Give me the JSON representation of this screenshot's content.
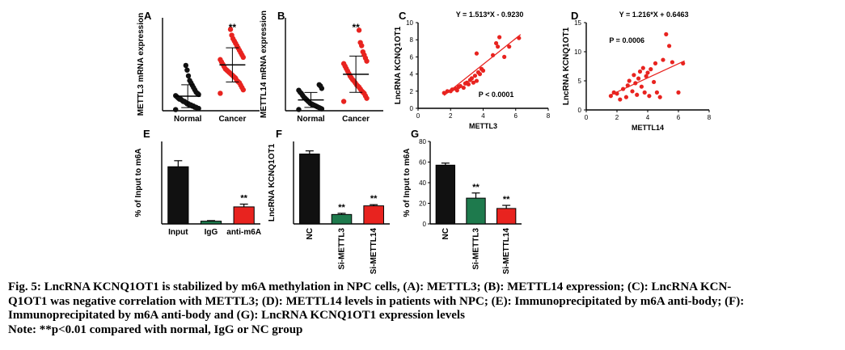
{
  "figure": {
    "caption": {
      "line1": "Fig. 5: LncRNA KCNQ1OT1 is stabilized by m6A methylation in NPC cells, (A): METTL3; (B): METTL14 expression; (C): LncRNA KCN-",
      "line2": "Q1OT1 was negative correlation with METTL3; (D): METTL14 levels in patients with NPC; (E): Immunoprecipitated by m6A anti-body; (F):",
      "line3": "Immunoprecipitated by m6A anti-body and (G): LncRNA KCNQ1OT1 expression levels",
      "note": "Note: **p<0.01 compared with normal, IgG or NC group"
    },
    "colors": {
      "black": "#111111",
      "red": "#e8231f",
      "green": "#1e7a4d",
      "axis": "#000000"
    }
  },
  "chart_data": [
    {
      "panel": "A",
      "type": "scatter",
      "ylabel": "METTL3 mRNA expression",
      "categories": [
        "Normal",
        "Cancer"
      ],
      "ylim": [
        0,
        8
      ],
      "yticks": [],
      "groups": [
        {
          "category": "Normal",
          "color": "#111111",
          "values": [
            0.1,
            0.2,
            0.2,
            0.3,
            0.3,
            0.4,
            0.4,
            0.5,
            0.5,
            0.6,
            0.6,
            0.7,
            0.8,
            0.8,
            0.9,
            1.0,
            1.0,
            1.1,
            1.2,
            1.3,
            1.4,
            1.5,
            1.6,
            1.8,
            2.0,
            2.2,
            2.4,
            2.6,
            3.0,
            3.5,
            3.9
          ]
        },
        {
          "category": "Cancer",
          "color": "#e8231f",
          "values": [
            1.5,
            1.8,
            2.0,
            2.2,
            2.4,
            2.5,
            2.6,
            2.8,
            2.9,
            3.0,
            3.1,
            3.2,
            3.3,
            3.4,
            3.5,
            3.6,
            3.8,
            4.0,
            4.2,
            4.4,
            4.6,
            4.8,
            5.0,
            5.2,
            5.4,
            5.6,
            5.8,
            6.0,
            6.2,
            6.5,
            7.0
          ]
        }
      ],
      "annotations": [
        {
          "category": "Cancer",
          "text": "**"
        }
      ]
    },
    {
      "panel": "B",
      "type": "scatter",
      "ylabel": "METTL14 mRNA expression",
      "categories": [
        "Normal",
        "Cancer"
      ],
      "ylim": [
        0,
        15
      ],
      "yticks": [],
      "groups": [
        {
          "category": "Normal",
          "color": "#111111",
          "values": [
            0.2,
            0.3,
            0.4,
            0.5,
            0.6,
            0.7,
            0.8,
            0.9,
            1.0,
            1.1,
            1.2,
            1.4,
            1.6,
            1.8,
            2.0,
            2.2,
            2.5,
            2.8,
            3.0,
            3.3,
            3.6,
            4.0,
            4.2
          ]
        },
        {
          "category": "Cancer",
          "color": "#e8231f",
          "values": [
            1.5,
            2.0,
            2.4,
            2.8,
            3.0,
            3.2,
            3.5,
            3.8,
            4.0,
            4.2,
            4.5,
            4.8,
            5.0,
            5.3,
            5.6,
            6.0,
            6.4,
            6.8,
            7.2,
            7.6,
            8.0,
            8.5,
            9.0,
            9.5,
            10.5,
            11.0,
            13.0
          ]
        }
      ],
      "annotations": [
        {
          "category": "Cancer",
          "text": "**"
        }
      ]
    },
    {
      "panel": "C",
      "type": "scatter",
      "title": "Y = 1.513*X - 0.9230",
      "xlabel": "METTL3",
      "ylabel": "LncRNA KCNQ1OT1",
      "xlim": [
        0,
        8
      ],
      "ylim": [
        0,
        10
      ],
      "xticks": [
        0,
        2,
        4,
        6,
        8
      ],
      "yticks": [
        0,
        2,
        4,
        6,
        8,
        10
      ],
      "fit": {
        "slope": 1.513,
        "intercept": -0.923,
        "x": [
          1.6,
          6.3
        ]
      },
      "stat": "P < 0.0001",
      "points": [
        [
          1.6,
          1.8
        ],
        [
          1.8,
          2.0
        ],
        [
          2.0,
          2.0
        ],
        [
          2.1,
          2.2
        ],
        [
          2.3,
          2.3
        ],
        [
          2.4,
          2.1
        ],
        [
          2.5,
          2.5
        ],
        [
          2.6,
          2.6
        ],
        [
          2.8,
          2.4
        ],
        [
          2.9,
          2.9
        ],
        [
          3.0,
          3.0
        ],
        [
          3.1,
          2.8
        ],
        [
          3.2,
          3.3
        ],
        [
          3.3,
          3.5
        ],
        [
          3.4,
          3.0
        ],
        [
          3.5,
          3.8
        ],
        [
          3.6,
          3.2
        ],
        [
          3.7,
          4.2
        ],
        [
          3.8,
          4.0
        ],
        [
          3.9,
          4.6
        ],
        [
          4.0,
          4.4
        ],
        [
          3.6,
          6.4
        ],
        [
          4.6,
          6.2
        ],
        [
          4.8,
          7.6
        ],
        [
          4.9,
          7.2
        ],
        [
          5.0,
          8.3
        ],
        [
          5.3,
          6.0
        ],
        [
          5.6,
          7.2
        ],
        [
          6.2,
          8.2
        ]
      ]
    },
    {
      "panel": "D",
      "type": "scatter",
      "title": "Y = 1.216*X + 0.6463",
      "xlabel": "METTL14",
      "ylabel": "LncRNA KCNQ1OT1",
      "xlim": [
        0,
        8
      ],
      "ylim": [
        0,
        15
      ],
      "xticks": [
        0,
        2,
        4,
        6,
        8
      ],
      "yticks": [
        0,
        5,
        10,
        15
      ],
      "fit": {
        "slope": 1.216,
        "intercept": 0.6463,
        "x": [
          1.6,
          6.4
        ]
      },
      "stat": "P = 0.0006",
      "points": [
        [
          1.6,
          2.4
        ],
        [
          1.8,
          3.0
        ],
        [
          2.0,
          2.8
        ],
        [
          2.2,
          1.8
        ],
        [
          2.4,
          3.6
        ],
        [
          2.6,
          2.2
        ],
        [
          2.7,
          4.2
        ],
        [
          2.8,
          5.0
        ],
        [
          3.0,
          3.2
        ],
        [
          3.1,
          6.0
        ],
        [
          3.2,
          4.6
        ],
        [
          3.3,
          2.6
        ],
        [
          3.4,
          5.4
        ],
        [
          3.5,
          6.6
        ],
        [
          3.6,
          4.0
        ],
        [
          3.7,
          7.2
        ],
        [
          3.8,
          3.0
        ],
        [
          3.9,
          5.8
        ],
        [
          4.0,
          6.4
        ],
        [
          4.1,
          2.4
        ],
        [
          4.2,
          7.0
        ],
        [
          4.4,
          4.8
        ],
        [
          4.5,
          8.0
        ],
        [
          4.6,
          3.0
        ],
        [
          4.8,
          2.2
        ],
        [
          5.0,
          8.6
        ],
        [
          5.2,
          13.0
        ],
        [
          5.4,
          11.0
        ],
        [
          5.6,
          8.2
        ],
        [
          6.0,
          3.0
        ],
        [
          6.3,
          8.0
        ]
      ]
    },
    {
      "panel": "E",
      "type": "bar",
      "ylabel": "% of Input to m6A",
      "categories": [
        "Input",
        "IgG",
        "anti-m6A"
      ],
      "values": [
        104,
        5,
        31
      ],
      "errors": [
        11,
        1,
        5
      ],
      "colors": [
        "#111111",
        "#1e7a4d",
        "#e8231f"
      ],
      "ylim": [
        0,
        150
      ],
      "annotations": [
        "",
        "",
        "**"
      ]
    },
    {
      "panel": "F",
      "type": "bar",
      "ylabel": "LncRNA KCNQ1OT1",
      "categories": [
        "NC",
        "Si-METTL3",
        "Si-METTL14"
      ],
      "values": [
        1.78,
        0.24,
        0.46
      ],
      "errors": [
        0.08,
        0.03,
        0.03
      ],
      "colors": [
        "#111111",
        "#1e7a4d",
        "#e8231f"
      ],
      "ylim": [
        0,
        2.1
      ],
      "annotations": [
        "",
        "**",
        "**"
      ]
    },
    {
      "panel": "G",
      "type": "bar",
      "ylabel": "% of Input to m6A",
      "categories": [
        "NC",
        "Si-METTL3",
        "Si-METTL14"
      ],
      "values": [
        57,
        25,
        15
      ],
      "errors": [
        2,
        5,
        3
      ],
      "colors": [
        "#111111",
        "#1e7a4d",
        "#e8231f"
      ],
      "ylim": [
        0,
        80
      ],
      "yticks": [
        0,
        20,
        40,
        60,
        80
      ],
      "annotations": [
        "",
        "**",
        "**"
      ]
    }
  ]
}
